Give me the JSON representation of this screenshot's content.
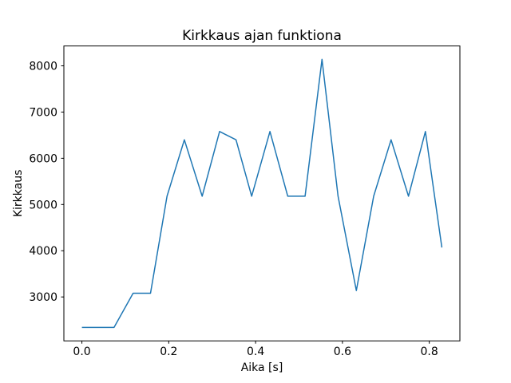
{
  "chart_data": {
    "type": "line",
    "title": "Kirkkaus ajan funktiona",
    "xlabel": "Aika [s]",
    "ylabel": "Kirkkaus",
    "x": [
      0.0,
      0.037,
      0.074,
      0.118,
      0.158,
      0.196,
      0.236,
      0.277,
      0.317,
      0.355,
      0.391,
      0.433,
      0.474,
      0.514,
      0.553,
      0.59,
      0.632,
      0.672,
      0.712,
      0.752,
      0.791,
      0.829
    ],
    "y": [
      2340,
      2340,
      2340,
      3080,
      3080,
      5180,
      6400,
      5180,
      6580,
      6400,
      5180,
      6580,
      5180,
      5180,
      8140,
      5180,
      3140,
      5180,
      6400,
      5180,
      6580,
      4070
    ],
    "xticks": [
      0.0,
      0.2,
      0.4,
      0.6,
      0.8
    ],
    "xtick_labels": [
      "0.0",
      "0.2",
      "0.4",
      "0.6",
      "0.8"
    ],
    "yticks": [
      3000,
      4000,
      5000,
      6000,
      7000,
      8000
    ],
    "ytick_labels": [
      "3000",
      "4000",
      "5000",
      "6000",
      "7000",
      "8000"
    ],
    "xlim": [
      -0.0415,
      0.8705
    ],
    "ylim": [
      2050,
      8430
    ],
    "grid": false,
    "legend_position": "none",
    "line_color": "#1f77b4",
    "axes_edge_color": "#000000",
    "text_color": "#000000",
    "background_color": "#ffffff"
  }
}
